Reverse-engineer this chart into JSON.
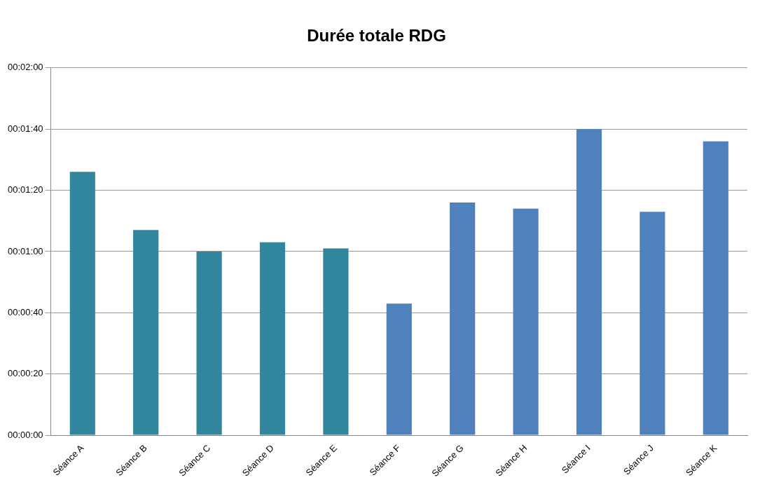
{
  "chart_data": {
    "type": "bar",
    "title": "Durée totale RDG",
    "categories": [
      "Séance A",
      "Séance B",
      "Séance C",
      "Séance D",
      "Séance E",
      "Séance F",
      "Séance G",
      "Séance H",
      "Séance I",
      "Séance J",
      "Séance K"
    ],
    "values": [
      86,
      67,
      60,
      63,
      61,
      43,
      76,
      74,
      100,
      73,
      96
    ],
    "colors": [
      "#31859c",
      "#31859c",
      "#31859c",
      "#31859c",
      "#31859c",
      "#4f81bd",
      "#4f81bd",
      "#4f81bd",
      "#4f81bd",
      "#4f81bd",
      "#4f81bd"
    ],
    "ylim": [
      0,
      120
    ],
    "yticks": [
      {
        "value": 0,
        "label": "00:00:00"
      },
      {
        "value": 20,
        "label": "00:00:20"
      },
      {
        "value": 40,
        "label": "00:00:40"
      },
      {
        "value": 60,
        "label": "00:01:00"
      },
      {
        "value": 80,
        "label": "00:01:20"
      },
      {
        "value": 100,
        "label": "00:01:40"
      },
      {
        "value": 120,
        "label": "00:02:00"
      }
    ],
    "grid": "y",
    "legend": false
  }
}
